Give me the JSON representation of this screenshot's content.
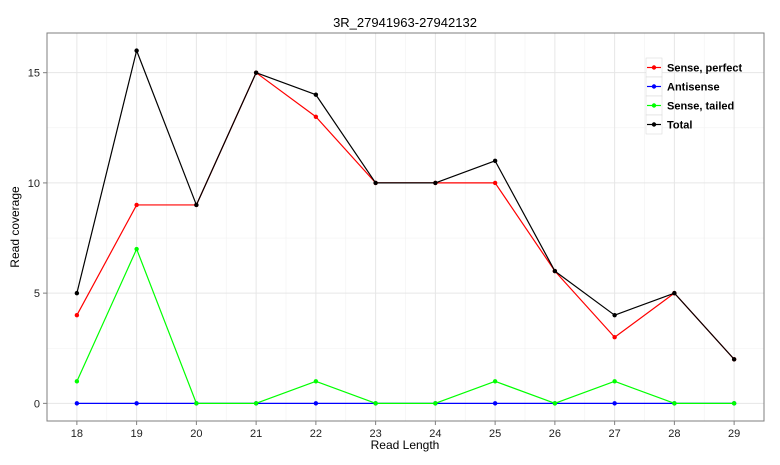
{
  "chart_data": {
    "type": "line",
    "title": "3R_27941963-27942132",
    "xlabel": "Read Length",
    "ylabel": "Read coverage",
    "x": [
      18,
      19,
      20,
      21,
      22,
      23,
      24,
      25,
      26,
      27,
      28,
      29
    ],
    "x_tick_labels": [
      "18",
      "19",
      "20",
      "21",
      "22",
      "23",
      "24",
      "25",
      "26",
      "27",
      "28",
      "29"
    ],
    "y_ticks": [
      0,
      5,
      10,
      15
    ],
    "y_tick_labels": [
      "0",
      "5",
      "10",
      "15"
    ],
    "xlim": [
      17.5,
      29.5
    ],
    "ylim": [
      -0.8,
      16.8
    ],
    "grid": true,
    "legend_position": "top-right",
    "series": [
      {
        "name": "Sense, perfect",
        "color": "#ff0000",
        "values": [
          4,
          9,
          9,
          15,
          13,
          10,
          10,
          10,
          6,
          3,
          5,
          2
        ]
      },
      {
        "name": "Antisense",
        "color": "#0000ff",
        "values": [
          0,
          0,
          0,
          0,
          0,
          0,
          0,
          0,
          0,
          0,
          0,
          0
        ]
      },
      {
        "name": "Sense, tailed",
        "color": "#00ff00",
        "values": [
          1,
          7,
          0,
          0,
          1,
          0,
          0,
          1,
          0,
          1,
          0,
          0
        ]
      },
      {
        "name": "Total",
        "color": "#000000",
        "values": [
          5,
          16,
          9,
          15,
          14,
          10,
          10,
          11,
          6,
          4,
          5,
          2
        ]
      }
    ]
  }
}
